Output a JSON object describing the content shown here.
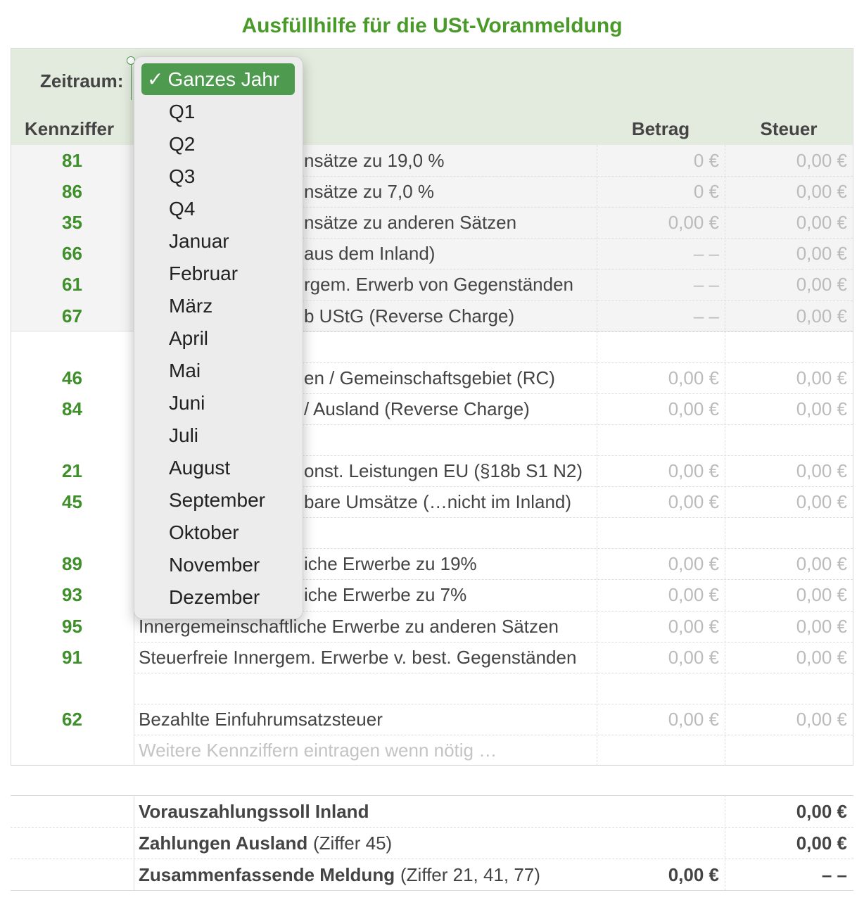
{
  "title": "Ausfüllhilfe für die USt-Voranmeldung",
  "period_label": "Zeitraum:",
  "headers": {
    "code": "Kennziffer",
    "betrag": "Betrag",
    "steuer": "Steuer"
  },
  "rows": [
    {
      "code": "81",
      "label": "nsätze zu 19,0 %",
      "betrag": "0 €",
      "steuer": "0,00 €"
    },
    {
      "code": "86",
      "label": "nsätze zu 7,0 %",
      "betrag": "0 €",
      "steuer": "0,00 €"
    },
    {
      "code": "35",
      "label": "nsätze zu anderen Sätzen",
      "betrag": "0,00 €",
      "steuer": "0,00 €"
    },
    {
      "code": "66",
      "label": "aus dem Inland)",
      "betrag": "– –",
      "steuer": "0,00 €"
    },
    {
      "code": "61",
      "label": "rgem. Erwerb von Gegenständen",
      "betrag": "– –",
      "steuer": "0,00 €"
    },
    {
      "code": "67",
      "label": "b UStG (Reverse Charge)",
      "betrag": "– –",
      "steuer": "0,00 €"
    },
    null,
    {
      "code": "46",
      "label": "en / Gemeinschaftsgebiet (RC)",
      "betrag": "0,00 €",
      "steuer": "0,00 €"
    },
    {
      "code": "84",
      "label": "/ Ausland (Reverse Charge)",
      "betrag": "0,00 €",
      "steuer": "0,00 €"
    },
    null,
    {
      "code": "21",
      "label": "onst. Leistungen EU (§18b S1 N2)",
      "betrag": "0,00 €",
      "steuer": "0,00 €"
    },
    {
      "code": "45",
      "label": "bare Umsätze (…nicht im Inland)",
      "betrag": "0,00 €",
      "steuer": "0,00 €"
    },
    null,
    {
      "code": "89",
      "label": "iche Erwerbe zu 19%",
      "betrag": "0,00 €",
      "steuer": "0,00 €"
    },
    {
      "code": "93",
      "label": "iche Erwerbe zu 7%",
      "betrag": "0,00 €",
      "steuer": "0,00 €"
    },
    {
      "code": "95",
      "label": "Innergemeinschaftliche Erwerbe zu anderen Sätzen",
      "betrag": "0,00 €",
      "steuer": "0,00 €"
    },
    {
      "code": "91",
      "label": "Steuerfreie Innergem. Erwerbe v. best. Gegenständen",
      "betrag": "0,00 €",
      "steuer": "0,00 €"
    },
    null,
    {
      "code": "62",
      "label": "Bezahlte Einfuhrumsatzsteuer",
      "betrag": "0,00 €",
      "steuer": "0,00 €"
    },
    {
      "placeholder": "Weitere Kennziffern eintragen wenn nötig …"
    }
  ],
  "summary": [
    {
      "label": "Vorauszahlungssoll Inland",
      "steuer": "0,00 €"
    },
    {
      "label": "Zahlungen Ausland",
      "note": "(Ziffer 45)",
      "steuer": "0,00 €"
    },
    {
      "label": "Zusammenfassende Meldung",
      "note": "(Ziffer 21, 41, 77)",
      "betrag": "0,00 €",
      "steuer": "– –"
    }
  ],
  "dropdown": {
    "check": "✓",
    "selected": "Ganzes Jahr",
    "items": [
      "Q1",
      "Q2",
      "Q3",
      "Q4",
      "Januar",
      "Februar",
      "März",
      "April",
      "Mai",
      "Juni",
      "Juli",
      "August",
      "September",
      "Oktober",
      "November",
      "Dezember"
    ]
  }
}
